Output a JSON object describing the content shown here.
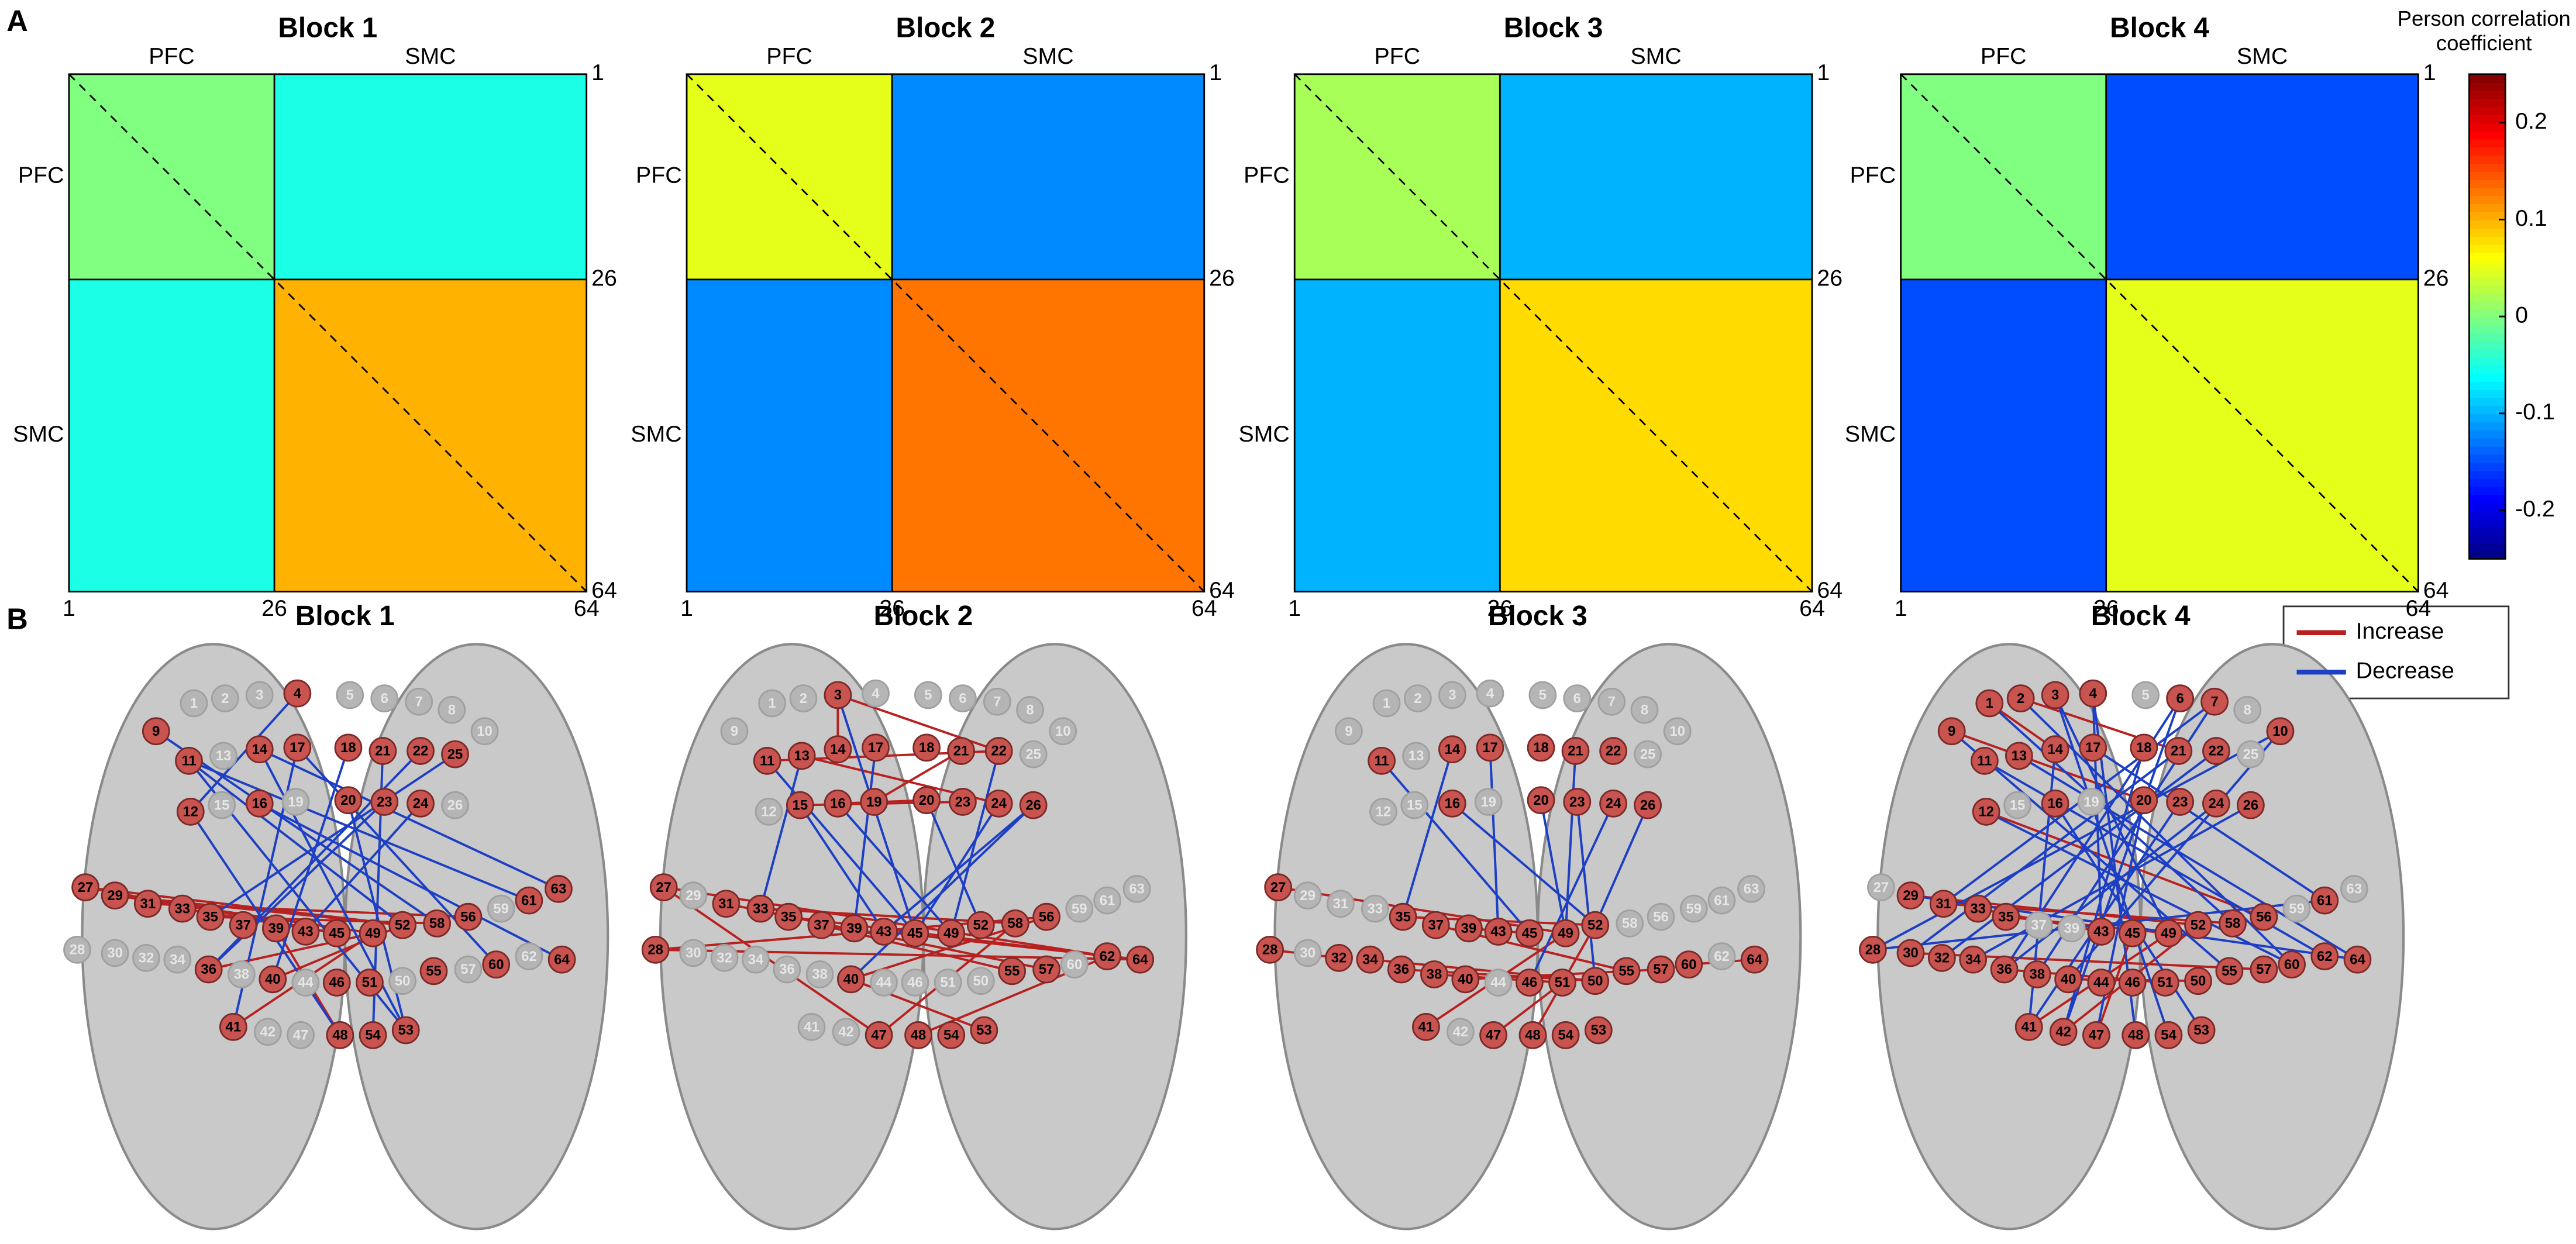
{
  "panel_labels": [
    "A",
    "B"
  ],
  "colorbar": {
    "title_lines": [
      "Person correlation",
      "coefficient"
    ],
    "clim": [
      -0.25,
      0.25
    ],
    "ticks": [
      0.2,
      0.1,
      0,
      -0.1,
      -0.2
    ]
  },
  "matrix": {
    "regions": [
      "PFC",
      "SMC"
    ],
    "ticks": [
      1,
      26,
      64
    ]
  },
  "legend": [
    {
      "label": "Increase",
      "color": "#b8211f"
    },
    {
      "label": "Decrease",
      "color": "#1d3fc4"
    }
  ],
  "electrodes": [
    1,
    2,
    3,
    4,
    5,
    6,
    7,
    8,
    9,
    10,
    11,
    12,
    13,
    14,
    15,
    16,
    17,
    18,
    19,
    20,
    21,
    22,
    23,
    24,
    25,
    26,
    27,
    28,
    29,
    30,
    31,
    32,
    33,
    34,
    35,
    36,
    37,
    38,
    39,
    40,
    41,
    42,
    43,
    44,
    45,
    46,
    47,
    48,
    49,
    50,
    51,
    52,
    53,
    54,
    55,
    56,
    57,
    58,
    59,
    60,
    61,
    62,
    63,
    64
  ],
  "blocks": [
    {
      "title": "Block 1",
      "region_means": [
        [
          0.0,
          -0.05
        ],
        [
          -0.05,
          0.1
        ]
      ],
      "active_nodes": [
        4,
        9,
        11,
        12,
        14,
        16,
        17,
        18,
        20,
        21,
        22,
        23,
        24,
        25,
        27,
        29,
        31,
        33,
        35,
        36,
        37,
        39,
        40,
        41,
        43,
        45,
        46,
        48,
        49,
        51,
        52,
        53,
        54,
        55,
        56,
        58,
        60,
        61,
        63,
        64
      ],
      "increase": [
        [
          27,
          52
        ],
        [
          29,
          49
        ],
        [
          31,
          56
        ],
        [
          33,
          45
        ],
        [
          35,
          58
        ],
        [
          36,
          49
        ],
        [
          40,
          52
        ],
        [
          41,
          49
        ],
        [
          48,
          39
        ],
        [
          27,
          45
        ],
        [
          29,
          52
        ]
      ],
      "decrease": [
        [
          4,
          12
        ],
        [
          9,
          58
        ],
        [
          11,
          52
        ],
        [
          11,
          53
        ],
        [
          12,
          48
        ],
        [
          14,
          63
        ],
        [
          16,
          64
        ],
        [
          17,
          41
        ],
        [
          18,
          40
        ],
        [
          21,
          54
        ],
        [
          22,
          36
        ],
        [
          23,
          36
        ],
        [
          25,
          35
        ],
        [
          24,
          43
        ],
        [
          20,
          53
        ],
        [
          11,
          61
        ],
        [
          14,
          53
        ],
        [
          17,
          60
        ]
      ]
    },
    {
      "title": "Block 2",
      "region_means": [
        [
          0.05,
          -0.12
        ],
        [
          -0.12,
          0.13
        ]
      ],
      "active_nodes": [
        3,
        11,
        13,
        14,
        15,
        16,
        17,
        18,
        19,
        20,
        21,
        22,
        23,
        24,
        26,
        27,
        28,
        31,
        33,
        35,
        37,
        39,
        40,
        43,
        45,
        47,
        48,
        49,
        52,
        53,
        54,
        55,
        56,
        57,
        58,
        62,
        64
      ],
      "increase": [
        [
          3,
          14
        ],
        [
          3,
          22
        ],
        [
          11,
          22
        ],
        [
          13,
          24
        ],
        [
          15,
          23
        ],
        [
          16,
          20
        ],
        [
          19,
          21
        ],
        [
          27,
          62
        ],
        [
          28,
          56
        ],
        [
          28,
          64
        ],
        [
          31,
          57
        ],
        [
          33,
          58
        ],
        [
          35,
          62
        ],
        [
          37,
          55
        ],
        [
          40,
          56
        ],
        [
          40,
          53
        ],
        [
          47,
          58
        ],
        [
          48,
          62
        ],
        [
          43,
          64
        ],
        [
          27,
          47
        ]
      ],
      "decrease": [
        [
          3,
          45
        ],
        [
          11,
          45
        ],
        [
          15,
          43
        ],
        [
          16,
          49
        ],
        [
          17,
          39
        ],
        [
          20,
          52
        ],
        [
          24,
          45
        ],
        [
          26,
          43
        ],
        [
          26,
          40
        ],
        [
          13,
          33
        ],
        [
          22,
          49
        ]
      ]
    },
    {
      "title": "Block 3",
      "region_means": [
        [
          0.02,
          -0.1
        ],
        [
          -0.1,
          0.08
        ]
      ],
      "active_nodes": [
        11,
        14,
        16,
        17,
        18,
        20,
        21,
        22,
        23,
        24,
        26,
        27,
        28,
        32,
        34,
        35,
        36,
        37,
        38,
        39,
        40,
        41,
        43,
        45,
        46,
        47,
        48,
        49,
        50,
        51,
        52,
        53,
        54,
        55,
        57,
        60,
        64
      ],
      "increase": [
        [
          27,
          49
        ],
        [
          28,
          32
        ],
        [
          35,
          52
        ],
        [
          36,
          50
        ],
        [
          37,
          55
        ],
        [
          38,
          51
        ],
        [
          40,
          57
        ],
        [
          41,
          49
        ],
        [
          47,
          51
        ],
        [
          48,
          52
        ],
        [
          60,
          64
        ],
        [
          39,
          45
        ],
        [
          34,
          50
        ]
      ],
      "decrease": [
        [
          11,
          45
        ],
        [
          14,
          35
        ],
        [
          16,
          52
        ],
        [
          17,
          43
        ],
        [
          24,
          46
        ],
        [
          26,
          52
        ],
        [
          20,
          49
        ],
        [
          23,
          50
        ],
        [
          21,
          49
        ]
      ]
    },
    {
      "title": "Block 4",
      "region_means": [
        [
          0.0,
          -0.15
        ],
        [
          -0.15,
          0.05
        ]
      ],
      "active_nodes": [
        1,
        2,
        3,
        4,
        6,
        7,
        9,
        10,
        11,
        12,
        13,
        14,
        16,
        17,
        18,
        20,
        21,
        22,
        23,
        24,
        26,
        28,
        29,
        30,
        31,
        32,
        33,
        34,
        35,
        36,
        38,
        40,
        41,
        42,
        43,
        44,
        45,
        46,
        47,
        48,
        49,
        50,
        51,
        52,
        53,
        54,
        55,
        56,
        57,
        58,
        60,
        61,
        62,
        64
      ],
      "increase": [
        [
          1,
          14
        ],
        [
          2,
          21
        ],
        [
          9,
          20
        ],
        [
          12,
          56
        ],
        [
          29,
          52
        ],
        [
          31,
          58
        ],
        [
          33,
          43
        ],
        [
          35,
          49
        ],
        [
          36,
          51
        ],
        [
          40,
          50
        ],
        [
          41,
          49
        ],
        [
          42,
          52
        ],
        [
          47,
          45
        ],
        [
          30,
          57
        ]
      ],
      "decrease": [
        [
          1,
          58
        ],
        [
          2,
          60
        ],
        [
          3,
          49
        ],
        [
          4,
          43
        ],
        [
          6,
          36
        ],
        [
          7,
          31
        ],
        [
          9,
          55
        ],
        [
          10,
          28
        ],
        [
          10,
          40
        ],
        [
          11,
          62
        ],
        [
          13,
          64
        ],
        [
          14,
          41
        ],
        [
          17,
          61
        ],
        [
          18,
          42
        ],
        [
          21,
          30
        ],
        [
          22,
          32
        ],
        [
          24,
          36
        ],
        [
          26,
          34
        ],
        [
          12,
          60
        ],
        [
          16,
          53
        ],
        [
          23,
          41
        ],
        [
          20,
          47
        ],
        [
          28,
          61
        ],
        [
          29,
          64
        ],
        [
          6,
          42
        ],
        [
          7,
          38
        ],
        [
          3,
          54
        ],
        [
          4,
          48
        ]
      ]
    }
  ]
}
